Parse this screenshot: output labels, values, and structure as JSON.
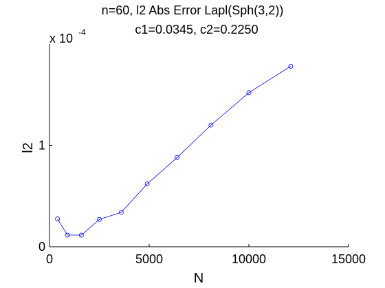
{
  "chart_data": {
    "type": "line",
    "title_lines": [
      "n=60,  l2 Abs Error Lapl(Sph(3,2))",
      "c1=0.0345, c2=0.2250"
    ],
    "xlabel": "N",
    "ylabel": "l2",
    "y_multiplier": {
      "base": "x 10",
      "exponent": "-4"
    },
    "xlim": [
      0,
      15000
    ],
    "ylim": [
      0,
      2
    ],
    "x_ticks": [
      0,
      5000,
      10000,
      15000
    ],
    "x_tick_labels": [
      "0",
      "5000",
      "10000",
      "15000"
    ],
    "y_ticks": [
      0,
      1
    ],
    "y_tick_labels": [
      "0",
      "1"
    ],
    "grid": false,
    "marker": "circle",
    "series_color": "#0000ff",
    "x": [
      400,
      900,
      1600,
      2500,
      3600,
      4900,
      6400,
      8100,
      10000,
      12100
    ],
    "y": [
      0.275,
      0.115,
      0.115,
      0.27,
      0.34,
      0.62,
      0.88,
      1.2,
      1.52,
      1.78
    ]
  }
}
